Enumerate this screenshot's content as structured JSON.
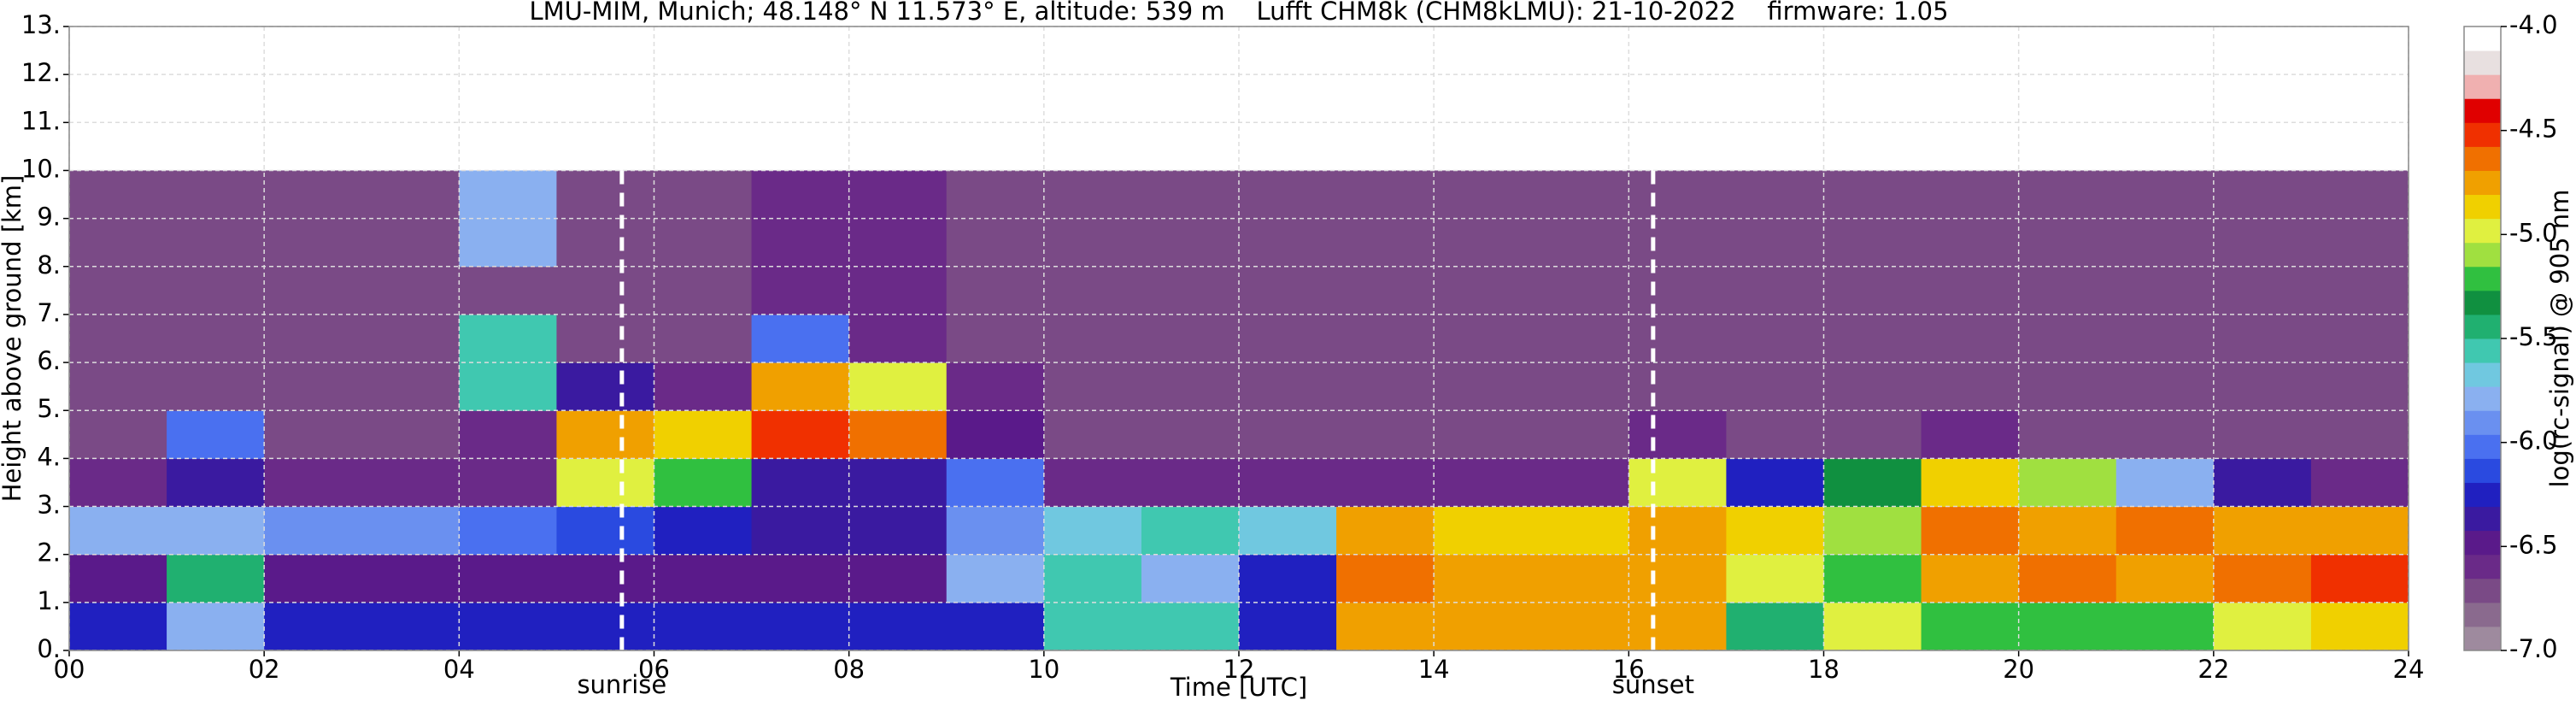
{
  "chart_data": {
    "type": "heatmap",
    "title": "LMU-MIM, Munich; 48.148° N 11.573° E, altitude: 539 m    Lufft CHM8k (CHM8kLMU): 21-10-2022    firmware: 1.05",
    "xlabel": "Time [UTC]",
    "ylabel": "Height above ground [km]",
    "colorbar_label": "log(rc-signal) @ 905 nm",
    "xlim": [
      0,
      24
    ],
    "ylim": [
      0,
      13
    ],
    "clim": [
      -7,
      -4
    ],
    "xticks": [
      {
        "value": 0,
        "label": "00"
      },
      {
        "value": 2,
        "label": "02"
      },
      {
        "value": 4,
        "label": "04"
      },
      {
        "value": 6,
        "label": "06"
      },
      {
        "value": 8,
        "label": "08"
      },
      {
        "value": 10,
        "label": "10"
      },
      {
        "value": 12,
        "label": "12"
      },
      {
        "value": 14,
        "label": "14"
      },
      {
        "value": 16,
        "label": "16"
      },
      {
        "value": 18,
        "label": "18"
      },
      {
        "value": 20,
        "label": "20"
      },
      {
        "value": 22,
        "label": "22"
      },
      {
        "value": 24,
        "label": "24"
      }
    ],
    "yticks": [
      {
        "value": 0,
        "label": "0."
      },
      {
        "value": 1,
        "label": "1."
      },
      {
        "value": 2,
        "label": "2."
      },
      {
        "value": 3,
        "label": "3."
      },
      {
        "value": 4,
        "label": "4."
      },
      {
        "value": 5,
        "label": "5."
      },
      {
        "value": 6,
        "label": "6."
      },
      {
        "value": 7,
        "label": "7."
      },
      {
        "value": 8,
        "label": "8."
      },
      {
        "value": 9,
        "label": "9."
      },
      {
        "value": 10,
        "label": "10."
      },
      {
        "value": 11,
        "label": "11."
      },
      {
        "value": 12,
        "label": "12."
      },
      {
        "value": 13,
        "label": "13."
      }
    ],
    "cticks": [
      {
        "value": -7,
        "label": "-7.0"
      },
      {
        "value": -6.5,
        "label": "-6.5"
      },
      {
        "value": -6,
        "label": "-6.0"
      },
      {
        "value": -5.5,
        "label": "-5.5"
      },
      {
        "value": -5,
        "label": "-5.0"
      },
      {
        "value": -4.5,
        "label": "-4.5"
      },
      {
        "value": -4,
        "label": "-4.0"
      }
    ],
    "grid": true,
    "colormap": [
      "#9e8a9e",
      "#8a6a8e",
      "#7a4a86",
      "#6a2a88",
      "#5a1a8a",
      "#3a1aa0",
      "#2020c0",
      "#2a4ae0",
      "#4a70f0",
      "#6a90f0",
      "#8ab0f0",
      "#70c8e0",
      "#40c8b0",
      "#20b070",
      "#109040",
      "#30c040",
      "#a0e040",
      "#e0f040",
      "#f0d000",
      "#f0a000",
      "#f07000",
      "#f03000",
      "#e00000",
      "#f0b0b0",
      "#e8e0e0",
      "#ffffff"
    ],
    "x_bins": [
      0,
      1,
      2,
      3,
      4,
      5,
      6,
      7,
      8,
      9,
      10,
      11,
      12,
      13,
      14,
      15,
      16,
      17,
      18,
      19,
      20,
      21,
      22,
      23,
      24
    ],
    "y_bins": [
      0,
      1,
      2,
      3,
      4,
      5,
      6,
      7,
      8,
      9,
      10
    ],
    "z": [
      [
        -6.3,
        -5.8,
        -6.3,
        -6.3,
        -6.3,
        -6.3,
        -6.3,
        -6.3,
        -6.3,
        -6.3,
        -5.6,
        -5.6,
        -6.2,
        -4.8,
        -4.7,
        -4.8,
        -4.8,
        -5.5,
        -5.0,
        -5.2,
        -5.2,
        -5.2,
        -5.0,
        -4.9
      ],
      [
        -6.5,
        -5.5,
        -6.5,
        -6.5,
        -6.5,
        -6.5,
        -6.5,
        -6.5,
        -6.5,
        -5.8,
        -5.6,
        -5.8,
        -6.2,
        -4.6,
        -4.7,
        -4.7,
        -4.8,
        -5.0,
        -5.2,
        -4.7,
        -4.6,
        -4.7,
        -4.6,
        -4.5
      ],
      [
        -5.8,
        -5.8,
        -5.9,
        -5.9,
        -6.0,
        -6.1,
        -6.3,
        -6.4,
        -6.4,
        -5.9,
        -5.7,
        -5.6,
        -5.7,
        -4.8,
        -4.9,
        -4.9,
        -4.8,
        -4.9,
        -5.1,
        -4.6,
        -4.7,
        -4.6,
        -4.7,
        -4.8
      ],
      [
        -6.6,
        -6.4,
        -6.6,
        -6.6,
        -6.6,
        -5.0,
        -5.2,
        -6.4,
        -6.4,
        -6.0,
        -6.6,
        -6.6,
        -6.6,
        -6.6,
        -6.6,
        -6.6,
        -5.0,
        -6.2,
        -5.3,
        -4.9,
        -5.1,
        -5.8,
        -6.4,
        -6.6
      ],
      [
        -6.7,
        -6.0,
        -6.7,
        -6.7,
        -6.6,
        -4.8,
        -4.9,
        -4.5,
        -4.6,
        -6.5,
        -6.7,
        -6.7,
        -6.7,
        -6.7,
        -6.7,
        -6.7,
        -6.6,
        -6.7,
        -6.7,
        -6.6,
        -6.7,
        -6.7,
        -6.7,
        -6.7
      ],
      [
        -6.7,
        -6.7,
        -6.7,
        -6.7,
        -5.6,
        -6.4,
        -6.6,
        -4.8,
        -5.0,
        -6.6,
        -6.7,
        -6.7,
        -6.7,
        -6.7,
        -6.7,
        -6.7,
        -6.7,
        -6.7,
        -6.7,
        -6.7,
        -6.7,
        -6.7,
        -6.7,
        -6.7
      ],
      [
        -6.7,
        -6.7,
        -6.7,
        -6.7,
        -5.6,
        -6.7,
        -6.7,
        -6.0,
        -6.6,
        -6.7,
        -6.7,
        -6.7,
        -6.7,
        -6.7,
        -6.7,
        -6.7,
        -6.7,
        -6.7,
        -6.7,
        -6.7,
        -6.7,
        -6.7,
        -6.7,
        -6.7
      ],
      [
        -6.7,
        -6.7,
        -6.7,
        -6.7,
        -6.7,
        -6.7,
        -6.7,
        -6.6,
        -6.6,
        -6.7,
        -6.7,
        -6.7,
        -6.7,
        -6.7,
        -6.7,
        -6.7,
        -6.7,
        -6.7,
        -6.7,
        -6.7,
        -6.7,
        -6.7,
        -6.7,
        -6.7
      ],
      [
        -6.7,
        -6.7,
        -6.7,
        -6.7,
        -5.8,
        -6.7,
        -6.7,
        -6.6,
        -6.6,
        -6.7,
        -6.7,
        -6.7,
        -6.7,
        -6.7,
        -6.7,
        -6.7,
        -6.7,
        -6.7,
        -6.7,
        -6.7,
        -6.7,
        -6.7,
        -6.7,
        -6.7
      ],
      [
        -6.7,
        -6.7,
        -6.7,
        -6.7,
        -5.8,
        -6.7,
        -6.7,
        -6.6,
        -6.6,
        -6.7,
        -6.7,
        -6.7,
        -6.7,
        -6.7,
        -6.7,
        -6.7,
        -6.7,
        -6.7,
        -6.7,
        -6.7,
        -6.7,
        -6.7,
        -6.7,
        -6.7
      ]
    ],
    "annotations": [
      {
        "x": 5.67,
        "text": "sunrise"
      },
      {
        "x": 16.25,
        "text": "sunset"
      }
    ]
  }
}
